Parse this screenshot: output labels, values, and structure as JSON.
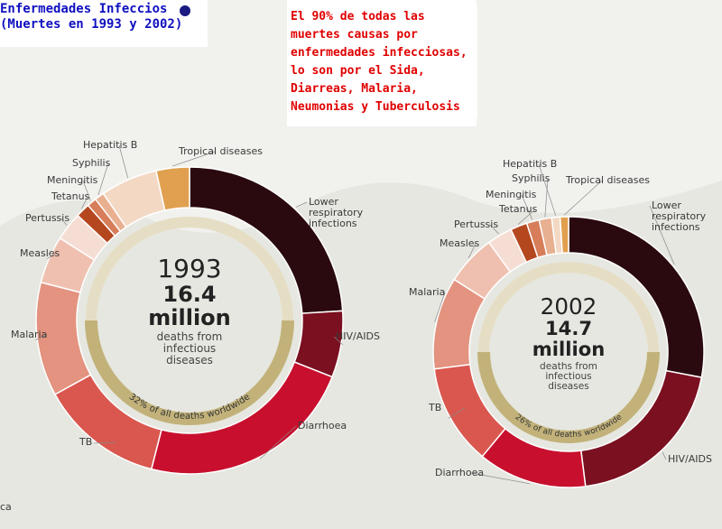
{
  "header": {
    "title": "Enfermedades Infeccios",
    "subtitle": "(Muertes  en 1993 y 2002)"
  },
  "annotation": "El 90% de todas las muertes causas por enfermedades infecciosas, lo son por el Sida, Diarreas, Malaria, Neumonias y Tuberculosis",
  "footer_fragment": "ca",
  "chart_data": [
    {
      "type": "donut",
      "year": "1993",
      "total": 16.4,
      "unit": "million",
      "caption": "deaths from infectious diseases",
      "share_label": "32% of all deaths worldwide",
      "categories": [
        "Lower respiratory infections",
        "HIV/AIDS",
        "Diarrhoea",
        "TB",
        "Malaria",
        "Measles",
        "Pertussis",
        "Tetanus",
        "Meningitis",
        "Syphilis",
        "Hepatitis B",
        "Tropical diseases"
      ],
      "values": [
        24,
        7,
        23,
        13,
        12,
        5,
        3,
        1.5,
        1,
        1,
        6,
        3.5
      ],
      "colors": [
        "#2a0a0e",
        "#7a1020",
        "#c8102e",
        "#d9574f",
        "#e3937f",
        "#efc0b0",
        "#f6ddd3",
        "#b5471f",
        "#d77d5a",
        "#e8b090",
        "#f3d9c4",
        "#e0a050"
      ]
    },
    {
      "type": "donut",
      "year": "2002",
      "total": 14.7,
      "unit": "million",
      "caption": "deaths from infectious diseases",
      "share_label": "26% of all deaths worldwide",
      "categories": [
        "Lower respiratory infections",
        "HIV/AIDS",
        "Diarrhoea",
        "TB",
        "Malaria",
        "Measles",
        "Pertussis",
        "Tetanus",
        "Meningitis",
        "Syphilis",
        "Hepatitis B",
        "Tropical diseases"
      ],
      "values": [
        28,
        20,
        13,
        12,
        11,
        6,
        3,
        2,
        1.5,
        1.5,
        1,
        1
      ],
      "colors": [
        "#2a0a0e",
        "#7a1020",
        "#c8102e",
        "#d9574f",
        "#e3937f",
        "#efc0b0",
        "#f6ddd3",
        "#b5471f",
        "#d77d5a",
        "#e8b090",
        "#f3d9c4",
        "#e0a050"
      ]
    }
  ]
}
